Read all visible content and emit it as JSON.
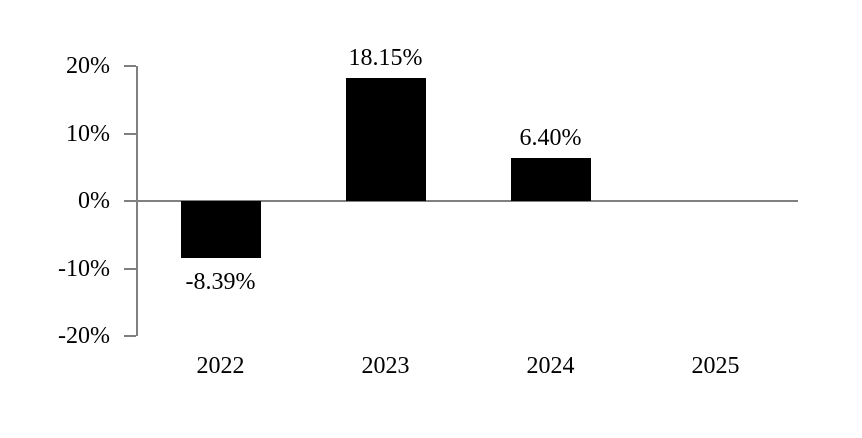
{
  "chart_data": {
    "type": "bar",
    "title": "",
    "xlabel": "",
    "ylabel": "",
    "categories": [
      "2022",
      "2023",
      "2024",
      "2025"
    ],
    "values": [
      -8.39,
      18.15,
      6.4,
      null
    ],
    "data_labels": [
      "-8.39%",
      "18.15%",
      "6.40%",
      ""
    ],
    "ylim": [
      -20,
      20
    ],
    "yticks": [
      20,
      10,
      0,
      -10,
      -20
    ],
    "ytick_labels": [
      "20%",
      "10%",
      "0%",
      "-10%",
      "-20%"
    ],
    "bar_color": "#000000",
    "axis_color": "#808080",
    "text_color": "#000000",
    "grid": false,
    "legend": null
  }
}
